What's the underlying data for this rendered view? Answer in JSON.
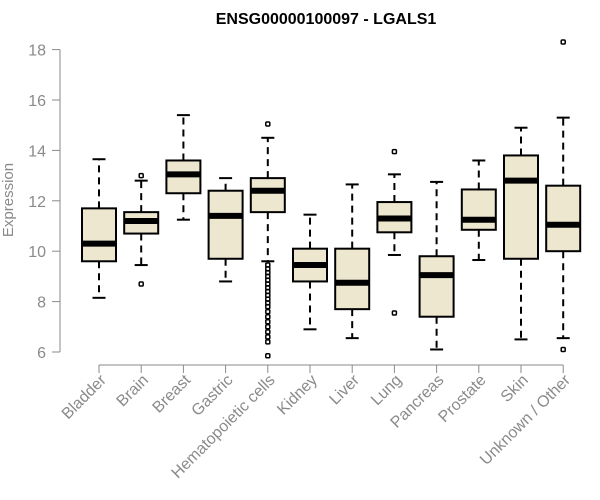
{
  "chart_data": {
    "type": "box",
    "title": "ENSG00000100097 - LGALS1",
    "ylabel": "Expression",
    "xlabel": "",
    "ylim": [
      5.8,
      18.4
    ],
    "yticks": [
      6,
      8,
      10,
      12,
      14,
      16,
      18
    ],
    "box_fill": "#ede7cf",
    "axis_color": "#8a8a8a",
    "categories": [
      "Bladder",
      "Brain",
      "Breast",
      "Gastric",
      "Hematopoietic cells",
      "Kidney",
      "Liver",
      "Lung",
      "Pancreas",
      "Prostate",
      "Skin",
      "Unknown / Other"
    ],
    "boxes": [
      {
        "whislo": 8.15,
        "q1": 9.6,
        "med": 10.3,
        "q3": 11.7,
        "whishi": 13.65,
        "fliers": []
      },
      {
        "whislo": 9.45,
        "q1": 10.7,
        "med": 11.2,
        "q3": 11.55,
        "whishi": 12.8,
        "fliers": [
          8.7,
          13.0
        ]
      },
      {
        "whislo": 11.25,
        "q1": 12.3,
        "med": 13.05,
        "q3": 13.6,
        "whishi": 15.4,
        "fliers": []
      },
      {
        "whislo": 8.8,
        "q1": 9.7,
        "med": 11.4,
        "q3": 12.4,
        "whishi": 12.9,
        "fliers": []
      },
      {
        "whislo": 9.6,
        "q1": 11.55,
        "med": 12.4,
        "q3": 12.9,
        "whishi": 14.5,
        "fliers": [
          15.05,
          9.45,
          9.3,
          9.15,
          9.0,
          8.85,
          8.7,
          8.55,
          8.4,
          8.25,
          8.1,
          7.95,
          7.8,
          7.6,
          7.4,
          7.2,
          7.0,
          6.8,
          6.6,
          6.4,
          5.85
        ]
      },
      {
        "whislo": 6.9,
        "q1": 8.8,
        "med": 9.45,
        "q3": 10.1,
        "whishi": 11.45,
        "fliers": []
      },
      {
        "whislo": 6.55,
        "q1": 7.7,
        "med": 8.75,
        "q3": 10.1,
        "whishi": 12.65,
        "fliers": []
      },
      {
        "whislo": 9.85,
        "q1": 10.75,
        "med": 11.3,
        "q3": 11.95,
        "whishi": 13.05,
        "fliers": [
          13.95,
          7.55
        ]
      },
      {
        "whislo": 6.1,
        "q1": 7.4,
        "med": 9.05,
        "q3": 9.8,
        "whishi": 12.75,
        "fliers": []
      },
      {
        "whislo": 9.65,
        "q1": 10.85,
        "med": 11.25,
        "q3": 12.45,
        "whishi": 13.6,
        "fliers": []
      },
      {
        "whislo": 6.5,
        "q1": 9.7,
        "med": 12.8,
        "q3": 13.8,
        "whishi": 14.9,
        "fliers": []
      },
      {
        "whislo": 6.55,
        "q1": 10.0,
        "med": 11.05,
        "q3": 12.6,
        "whishi": 15.3,
        "fliers": [
          18.3,
          6.1
        ]
      }
    ]
  }
}
